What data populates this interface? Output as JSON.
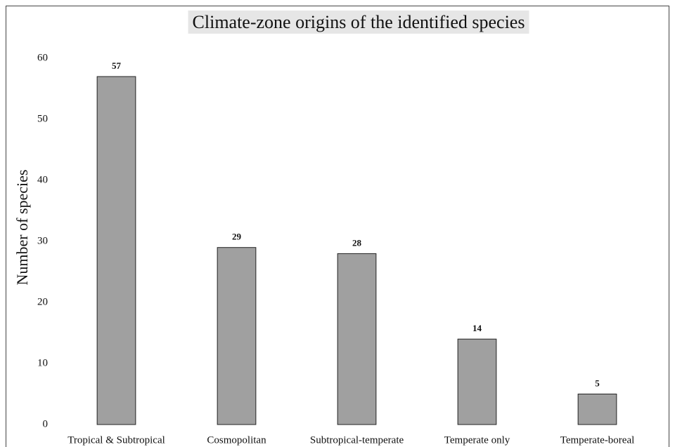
{
  "chart_data": {
    "type": "bar",
    "title": "Climate-zone origins of the identified species",
    "y_label": "Number of species",
    "categories": [
      "Tropical & Subtropical",
      "Cosmopolitan",
      "Subtropical-temperate",
      "Temperate only",
      "Temperate-boreal"
    ],
    "values": [
      57,
      29,
      28,
      14,
      5
    ],
    "color": "#a0a0a0",
    "ylim": [
      0,
      60
    ],
    "yticks": [
      0,
      10,
      20,
      30,
      40,
      50,
      60
    ],
    "grid": false
  }
}
